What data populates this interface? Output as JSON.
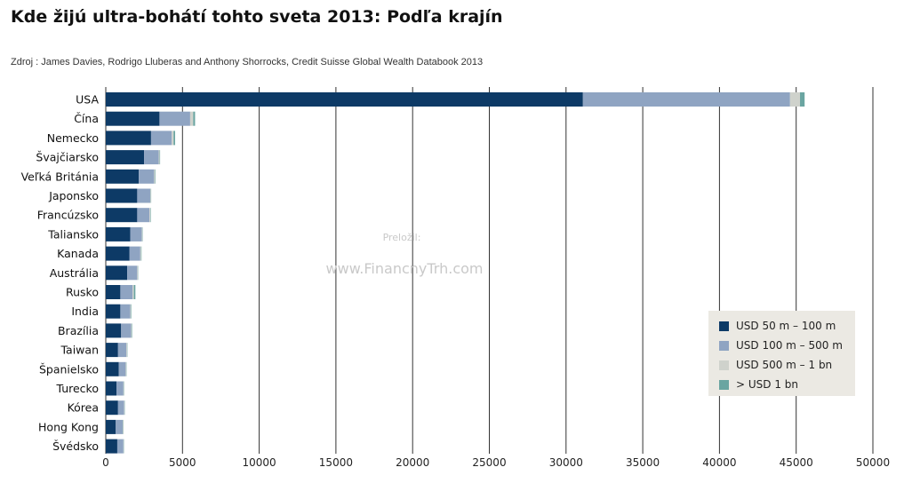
{
  "title": "Kde žijú ultra-bohátí tohto sveta 2013: Podľa krajín",
  "source": "Zdroj : James Davies, Rodrigo Lluberas and Anthony Shorrocks, Credit Suisse Global Wealth Databook 2013",
  "watermark": {
    "line1": "Preložil:",
    "line2": "www.FinancnyTrh.com"
  },
  "colors": {
    "band_50_100m": "#0d3a66",
    "band_100_500m": "#8fa4c2",
    "band_500m_1bn": "#cfd2cc",
    "band_over_1bn": "#6aa5a1",
    "grid": "#333333",
    "legend_bg": "#ebe9e3"
  },
  "chart_data": {
    "type": "bar",
    "orientation": "horizontal",
    "stacked": true,
    "title": "Kde žijú ultra-bohátí tohto sveta 2013: Podľa krajín",
    "xlim": [
      0,
      50000
    ],
    "x_ticks": [
      0,
      5000,
      10000,
      15000,
      20000,
      25000,
      30000,
      35000,
      40000,
      45000,
      50000
    ],
    "x_tick_labels": [
      "0",
      "5000",
      "10000",
      "15000",
      "20000",
      "25000",
      "30000",
      "35000",
      "40000",
      "45000",
      "50000"
    ],
    "grid": "vertical",
    "legend_position": "lower-right",
    "categories": [
      "USA",
      "Čína",
      "Nemecko",
      "Švajčiarsko",
      "Veľká Británia",
      "Japonsko",
      "Francúzsko",
      "Taliansko",
      "Kanada",
      "Austrália",
      "Rusko",
      "India",
      "Brazília",
      "Taiwan",
      "Španielsko",
      "Turecko",
      "Kórea",
      "Hong Kong",
      "Švédsko"
    ],
    "series": [
      {
        "name": "USD 50 m – 100 m",
        "values": [
          31100,
          3500,
          2950,
          2500,
          2150,
          2050,
          2050,
          1600,
          1550,
          1400,
          950,
          950,
          1000,
          800,
          850,
          700,
          800,
          650,
          750
        ]
      },
      {
        "name": "USD 100 m – 500 m",
        "values": [
          13500,
          2000,
          1350,
          950,
          1000,
          850,
          800,
          750,
          700,
          650,
          800,
          650,
          650,
          550,
          450,
          450,
          400,
          450,
          400
        ]
      },
      {
        "name": "USD 500 m – 1 bn",
        "values": [
          650,
          200,
          120,
          60,
          60,
          40,
          60,
          40,
          50,
          40,
          80,
          40,
          40,
          40,
          30,
          30,
          20,
          30,
          20
        ]
      },
      {
        "name": "> USD 1 bn",
        "values": [
          300,
          120,
          100,
          30,
          30,
          20,
          30,
          20,
          30,
          20,
          100,
          30,
          30,
          20,
          20,
          20,
          20,
          20,
          20
        ]
      }
    ]
  }
}
